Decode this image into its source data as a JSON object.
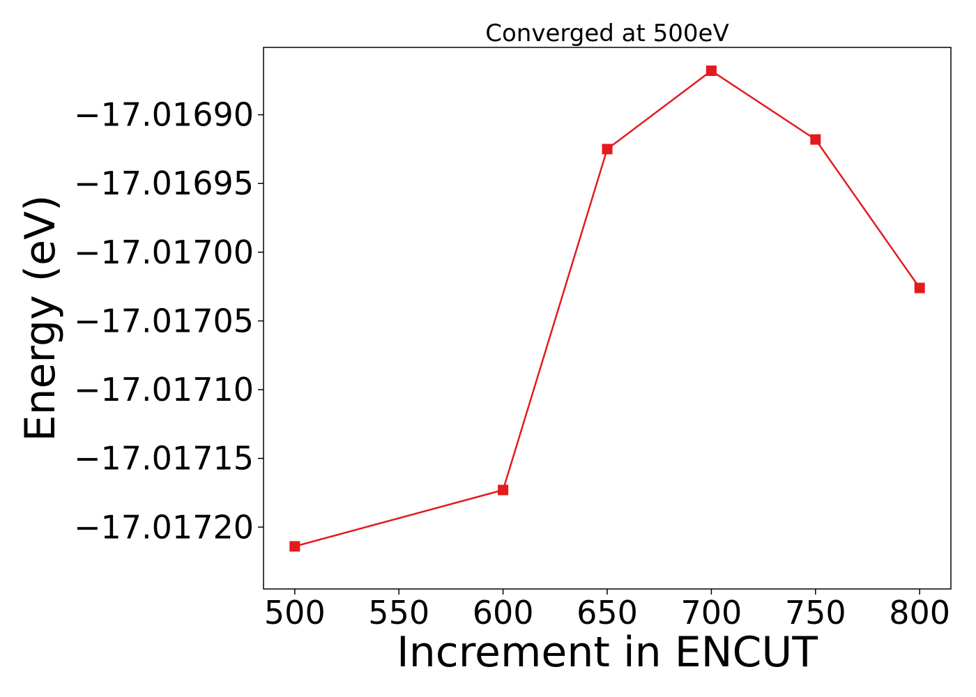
{
  "chart_data": {
    "type": "line",
    "title": "Converged at 500eV",
    "xlabel": "Increment in ENCUT",
    "ylabel": "Energy (eV)",
    "x": [
      500,
      600,
      650,
      700,
      750,
      800
    ],
    "series": [
      {
        "values": [
          -17.017214,
          -17.017173,
          -17.016925,
          -17.016868,
          -17.016918,
          -17.017026
        ],
        "color": "#e41a1c",
        "marker": "square"
      }
    ],
    "xlim": [
      485,
      815
    ],
    "ylim": [
      -17.017245,
      -17.016851
    ],
    "xticks": [
      500,
      550,
      600,
      650,
      700,
      750,
      800
    ],
    "xtick_labels": [
      "500",
      "550",
      "600",
      "650",
      "700",
      "750",
      "800"
    ],
    "yticks": [
      -17.0172,
      -17.01715,
      -17.0171,
      -17.01705,
      -17.017,
      -17.01695,
      -17.0169
    ],
    "ytick_labels": [
      "−17.01720",
      "−17.01715",
      "−17.01710",
      "−17.01705",
      "−17.01700",
      "−17.01695",
      "−17.01690"
    ],
    "grid": false,
    "legend": "none"
  }
}
